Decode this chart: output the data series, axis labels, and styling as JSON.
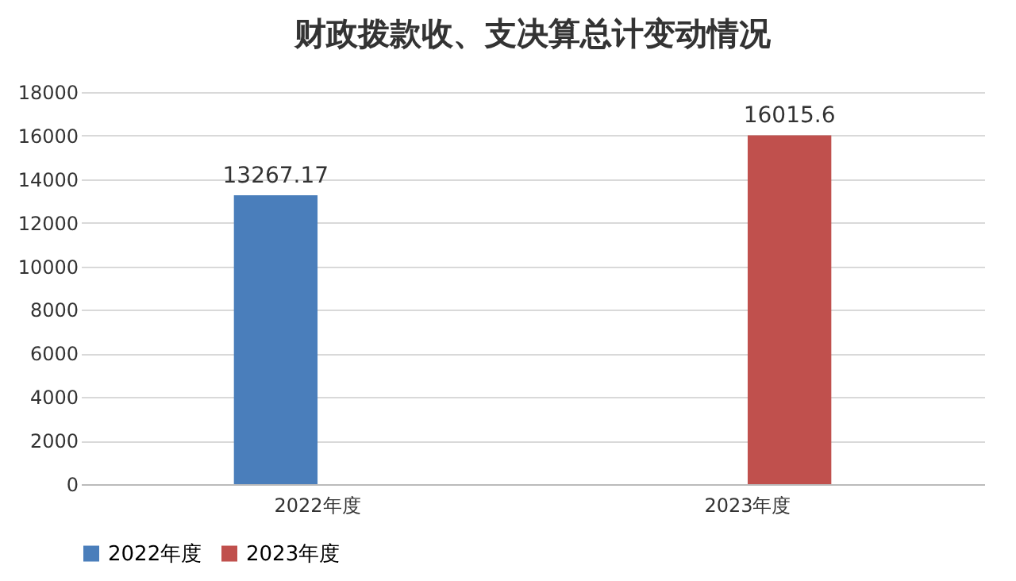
{
  "chart_data": {
    "type": "bar",
    "title": "财政拨款收、支决算总计变动情况",
    "categories": [
      "2022年度",
      "2023年度"
    ],
    "series": [
      {
        "name": "2022年度",
        "color": "#4a7ebb",
        "values": [
          13267.17,
          null
        ]
      },
      {
        "name": "2023年度",
        "color": "#c0504d",
        "values": [
          null,
          16015.6
        ]
      }
    ],
    "ylim": [
      0,
      18000
    ],
    "yticks": [
      0,
      2000,
      4000,
      6000,
      8000,
      10000,
      12000,
      14000,
      16000,
      18000
    ],
    "grid": "y",
    "legend": "bottom",
    "data_labels": true
  }
}
